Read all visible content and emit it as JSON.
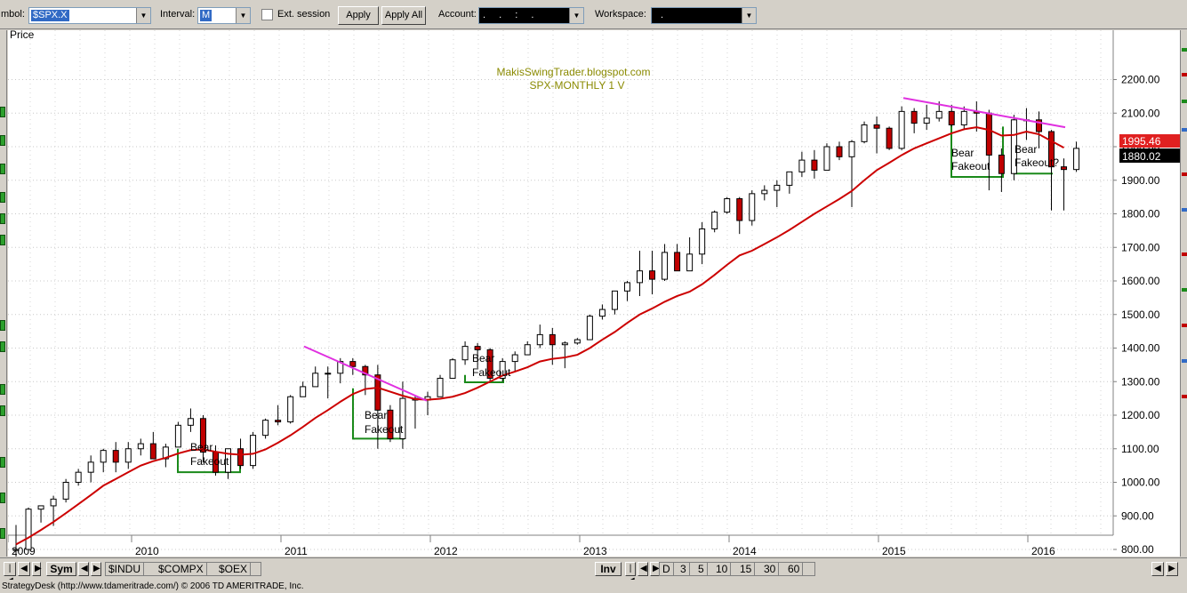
{
  "toolbar": {
    "symbol_label": "mbol:",
    "symbol_value": "$SPX.X",
    "interval_label": "Interval:",
    "interval_value": "M",
    "ext_session_label": "Ext. session",
    "apply_label": "Apply",
    "apply_all_label": "Apply All",
    "account_label": "Account:",
    "account_value": ". . : .",
    "workspace_label": "Workspace:",
    "workspace_value": "."
  },
  "chart": {
    "price_label": "Price",
    "watermark_line1": "MakisSwingTrader.blogspot.com",
    "watermark_line2": "SPX-MONTHLY  1 V",
    "last_price": "1995.46",
    "crosshair_price": "1880.02",
    "bear_label": "Bear",
    "fakeout_label": "Fakeout",
    "fakeout_q_label": "Fakeout?",
    "colors": {
      "up_candle": "#ffffff",
      "down_candle": "#c00000",
      "ma_line": "#cc0000",
      "trendline": "#e030e0",
      "box": "#1a8a1a",
      "watermark": "#8a8a00"
    }
  },
  "chart_data": {
    "type": "candlestick",
    "timeframe": "monthly",
    "series_ma": "moving average (red line)",
    "y_ticks": [
      2200,
      2100,
      2000,
      1900,
      1800,
      1700,
      1600,
      1500,
      1400,
      1300,
      1200,
      1100,
      1000,
      900,
      800
    ],
    "y_tick_labels": [
      "2200.00",
      "2100.00",
      "2000.00",
      "1900.00",
      "1800.00",
      "1700.00",
      "1600.00",
      "1500.00",
      "1400.00",
      "1300.00",
      "1200.00",
      "1100.00",
      "1000.00",
      "900.00",
      "800.00"
    ],
    "x_year_labels": [
      "2009",
      "2010",
      "2011",
      "2012",
      "2013",
      "2014",
      "2015",
      "2016"
    ],
    "annotations": [
      "Bear Fakeout",
      "Bear Fakeout",
      "Bear Fakeout",
      "Bear Fakeout",
      "Bear Fakeout?"
    ],
    "candles": [
      [
        797,
        873,
        757,
        800
      ],
      [
        800,
        925,
        800,
        920
      ],
      [
        920,
        930,
        880,
        930
      ],
      [
        930,
        960,
        870,
        950
      ],
      [
        950,
        1010,
        940,
        1000
      ],
      [
        1000,
        1040,
        990,
        1030
      ],
      [
        1030,
        1080,
        1000,
        1060
      ],
      [
        1060,
        1100,
        1030,
        1095
      ],
      [
        1095,
        1120,
        1030,
        1060
      ],
      [
        1060,
        1120,
        1040,
        1100
      ],
      [
        1100,
        1130,
        1080,
        1115
      ],
      [
        1115,
        1150,
        1070,
        1070
      ],
      [
        1070,
        1115,
        1045,
        1105
      ],
      [
        1105,
        1180,
        1105,
        1170
      ],
      [
        1170,
        1220,
        1150,
        1190
      ],
      [
        1190,
        1200,
        1060,
        1090
      ],
      [
        1090,
        1110,
        1020,
        1030
      ],
      [
        1030,
        1100,
        1010,
        1100
      ],
      [
        1100,
        1130,
        1040,
        1050
      ],
      [
        1050,
        1150,
        1040,
        1140
      ],
      [
        1140,
        1190,
        1130,
        1185
      ],
      [
        1185,
        1230,
        1170,
        1180
      ],
      [
        1180,
        1260,
        1175,
        1255
      ],
      [
        1255,
        1300,
        1255,
        1285
      ],
      [
        1285,
        1345,
        1285,
        1325
      ],
      [
        1325,
        1345,
        1250,
        1325
      ],
      [
        1325,
        1370,
        1295,
        1360
      ],
      [
        1360,
        1370,
        1320,
        1345
      ],
      [
        1345,
        1350,
        1260,
        1320
      ],
      [
        1320,
        1350,
        1100,
        1215
      ],
      [
        1215,
        1230,
        1120,
        1130
      ],
      [
        1130,
        1300,
        1100,
        1250
      ],
      [
        1250,
        1260,
        1160,
        1245
      ],
      [
        1245,
        1270,
        1200,
        1255
      ],
      [
        1255,
        1320,
        1255,
        1310
      ],
      [
        1310,
        1370,
        1310,
        1365
      ],
      [
        1365,
        1420,
        1350,
        1405
      ],
      [
        1405,
        1415,
        1340,
        1395
      ],
      [
        1395,
        1400,
        1300,
        1310
      ],
      [
        1310,
        1370,
        1300,
        1360
      ],
      [
        1360,
        1390,
        1330,
        1380
      ],
      [
        1380,
        1420,
        1380,
        1410
      ],
      [
        1410,
        1470,
        1400,
        1440
      ],
      [
        1440,
        1460,
        1350,
        1410
      ],
      [
        1410,
        1420,
        1340,
        1415
      ],
      [
        1415,
        1430,
        1410,
        1425
      ],
      [
        1425,
        1500,
        1425,
        1495
      ],
      [
        1495,
        1530,
        1485,
        1515
      ],
      [
        1515,
        1570,
        1500,
        1570
      ],
      [
        1570,
        1600,
        1540,
        1595
      ],
      [
        1595,
        1690,
        1555,
        1630
      ],
      [
        1630,
        1690,
        1560,
        1605
      ],
      [
        1605,
        1710,
        1600,
        1685
      ],
      [
        1685,
        1710,
        1630,
        1630
      ],
      [
        1630,
        1730,
        1630,
        1680
      ],
      [
        1680,
        1775,
        1650,
        1755
      ],
      [
        1755,
        1810,
        1745,
        1805
      ],
      [
        1805,
        1850,
        1800,
        1845
      ],
      [
        1845,
        1850,
        1740,
        1780
      ],
      [
        1780,
        1870,
        1765,
        1860
      ],
      [
        1860,
        1885,
        1840,
        1870
      ],
      [
        1870,
        1900,
        1820,
        1885
      ],
      [
        1885,
        1925,
        1860,
        1925
      ],
      [
        1925,
        1985,
        1910,
        1960
      ],
      [
        1960,
        1990,
        1905,
        1930
      ],
      [
        1930,
        2010,
        1930,
        2000
      ],
      [
        2000,
        2015,
        1960,
        1970
      ],
      [
        1970,
        2020,
        1820,
        2015
      ],
      [
        2015,
        2075,
        2010,
        2065
      ],
      [
        2065,
        2090,
        1980,
        2055
      ],
      [
        2055,
        2060,
        1990,
        1995
      ],
      [
        1995,
        2120,
        1990,
        2105
      ],
      [
        2105,
        2115,
        2040,
        2070
      ],
      [
        2070,
        2125,
        2050,
        2085
      ],
      [
        2085,
        2135,
        2075,
        2105
      ],
      [
        2105,
        2125,
        2060,
        2065
      ],
      [
        2065,
        2120,
        2050,
        2105
      ],
      [
        2105,
        2135,
        2045,
        2100
      ],
      [
        2100,
        2110,
        1870,
        1975
      ],
      [
        1975,
        1995,
        1865,
        1920
      ],
      [
        1920,
        2095,
        1900,
        2080
      ],
      [
        2080,
        2115,
        2020,
        2080
      ],
      [
        2080,
        2105,
        1995,
        2045
      ],
      [
        2045,
        2050,
        1810,
        1940
      ],
      [
        1940,
        1965,
        1810,
        1932
      ],
      [
        1932,
        2015,
        1925,
        1995
      ]
    ],
    "moving_average": [
      815,
      835,
      858,
      882,
      908,
      935,
      962,
      990,
      1010,
      1030,
      1050,
      1063,
      1073,
      1086,
      1096,
      1098,
      1091,
      1085,
      1082,
      1085,
      1098,
      1118,
      1140,
      1165,
      1192,
      1215,
      1240,
      1263,
      1278,
      1282,
      1270,
      1258,
      1248,
      1246,
      1249,
      1255,
      1266,
      1282,
      1300,
      1318,
      1330,
      1343,
      1360,
      1368,
      1372,
      1380,
      1400,
      1425,
      1448,
      1475,
      1500,
      1518,
      1538,
      1555,
      1568,
      1590,
      1618,
      1648,
      1676,
      1690,
      1710,
      1730,
      1752,
      1776,
      1800,
      1822,
      1844,
      1868,
      1900,
      1930,
      1952,
      1975,
      1995,
      2010,
      2025,
      2040,
      2052,
      2058,
      2050,
      2033,
      2035,
      2045,
      2037,
      2017,
      1997
    ]
  }
}
